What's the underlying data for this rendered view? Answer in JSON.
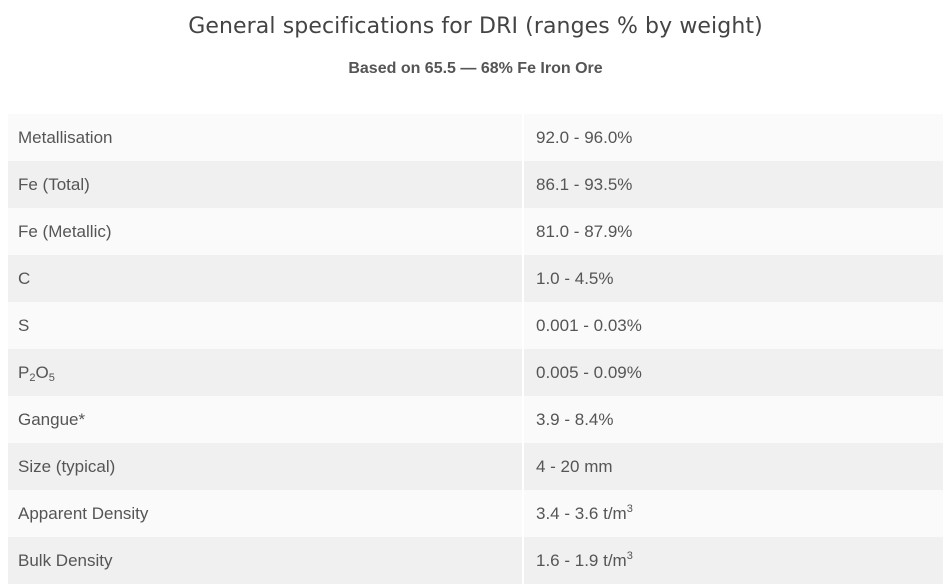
{
  "title": "General specifications for DRI (ranges % by weight)",
  "subtitle": "Based on 65.5 — 68% Fe Iron Ore",
  "rows": [
    {
      "parameter": "Metallisation",
      "value": "92.0 - 96.0%"
    },
    {
      "parameter": "Fe (Total)",
      "value": "86.1 - 93.5%"
    },
    {
      "parameter": "Fe (Metallic)",
      "value": "81.0 - 87.9%"
    },
    {
      "parameter": "C",
      "value": "1.0 - 4.5%"
    },
    {
      "parameter": "S",
      "value": "0.001 - 0.03%"
    },
    {
      "parameter": {
        "p1": "P",
        "s1": "2",
        "p2": "O",
        "s2": "5"
      },
      "value": "0.005 - 0.09%"
    },
    {
      "parameter": "Gangue*",
      "value": "3.9 - 8.4%"
    },
    {
      "parameter": "Size (typical)",
      "value": "4 - 20 mm"
    },
    {
      "parameter": "Apparent Density",
      "value": {
        "text": "3.4 - 3.6 t/m",
        "sup": "3"
      }
    },
    {
      "parameter": "Bulk Density",
      "value": {
        "text": "1.6 - 1.9 t/m",
        "sup": "3"
      }
    }
  ]
}
